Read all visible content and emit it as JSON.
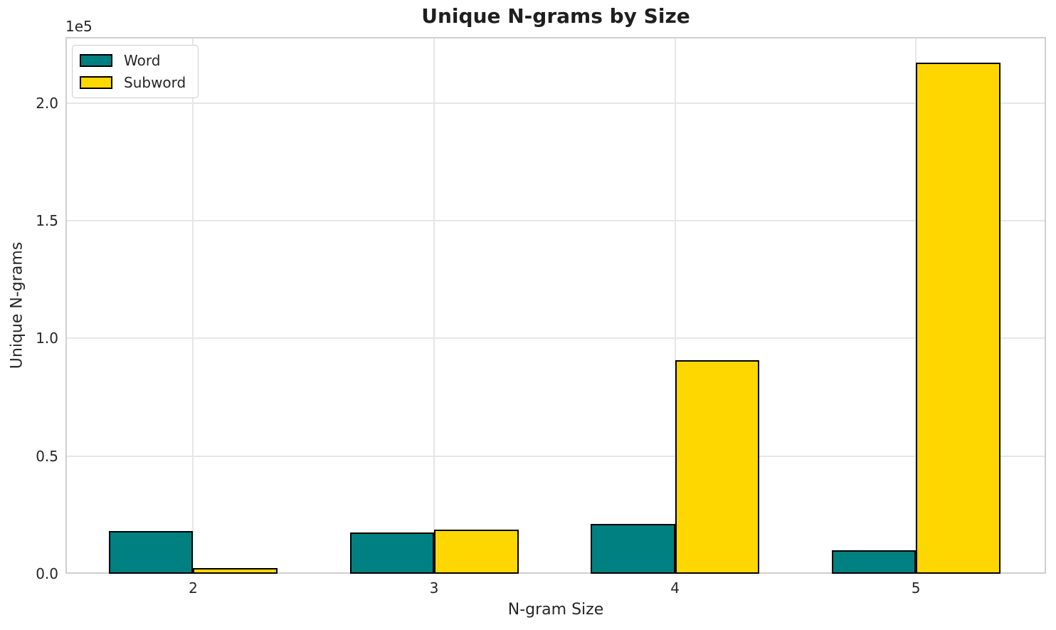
{
  "chart_data": {
    "type": "bar",
    "title": "Unique N-grams by Size",
    "xlabel": "N-gram Size",
    "ylabel": "Unique N-grams",
    "offset_label": "1e5",
    "categories": [
      2,
      3,
      4,
      5
    ],
    "series": [
      {
        "name": "Word",
        "color": "#008080",
        "values": [
          18200,
          17600,
          21200,
          10000
        ]
      },
      {
        "name": "Subword",
        "color": "#FFD700",
        "values": [
          2500,
          18700,
          90800,
          217000
        ]
      }
    ],
    "bar_width": 0.35,
    "bar_edge_color": "#000000",
    "xlim": [
      1.47,
      5.54
    ],
    "ylim": [
      0,
      228000
    ],
    "yticks": {
      "values": [
        0,
        50000,
        100000,
        150000,
        200000
      ],
      "labels": [
        "0.0",
        "0.5",
        "1.0",
        "1.5",
        "2.0"
      ]
    },
    "grid": true,
    "legend_position": "upper left",
    "colors": {
      "grid": "#e6e6e6",
      "spine": "#cfcfcf",
      "text": "#262626",
      "title": "#1f1f1f",
      "background": "#ffffff"
    }
  }
}
